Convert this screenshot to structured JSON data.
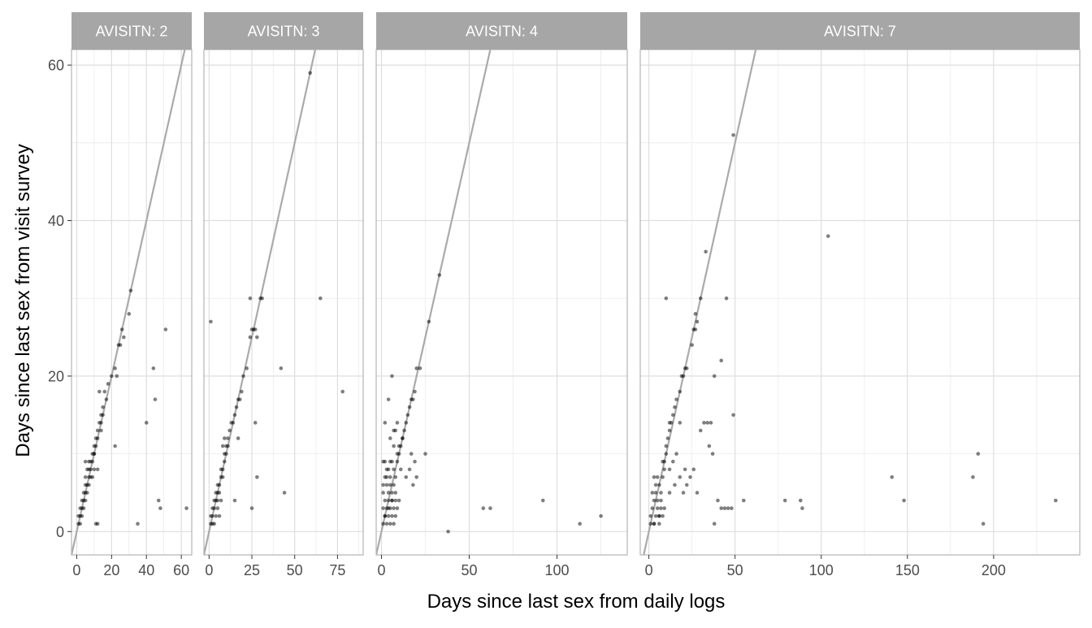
{
  "chart_data": {
    "type": "scatter",
    "layout": "faceted",
    "xlabel": "Days since last sex from daily logs",
    "ylabel": "Days since last sex from visit survey",
    "ylim": [
      -3,
      62
    ],
    "yticks": [
      0,
      20,
      40,
      60
    ],
    "grid": true,
    "reference_line": {
      "slope": 1,
      "intercept": 0
    },
    "point_color": "#000000",
    "point_opacity": 0.5,
    "line_color": "#aaaaaa",
    "panels": [
      {
        "label": "AVISITN: 2",
        "xlim": [
          -3,
          66
        ],
        "xticks": [
          0,
          20,
          40,
          60
        ],
        "x": [
          1,
          1,
          2,
          2,
          2,
          3,
          3,
          3,
          4,
          4,
          4,
          5,
          5,
          5,
          5,
          6,
          6,
          6,
          7,
          7,
          7,
          7,
          8,
          8,
          9,
          9,
          9,
          10,
          10,
          10,
          11,
          11,
          12,
          12,
          13,
          14,
          14,
          15,
          15,
          16,
          17,
          18,
          20,
          22,
          23,
          25,
          26,
          27,
          30,
          31,
          22,
          24,
          13,
          5,
          8,
          10,
          12,
          14,
          35,
          40,
          44,
          45,
          47,
          48,
          51,
          63,
          11,
          12
        ],
        "y": [
          1,
          2,
          1,
          2,
          3,
          3,
          4,
          2,
          4,
          3,
          5,
          5,
          4,
          6,
          7,
          6,
          5,
          8,
          7,
          6,
          8,
          9,
          8,
          7,
          10,
          9,
          7,
          10,
          11,
          8,
          12,
          11,
          13,
          12,
          14,
          15,
          13,
          15,
          16,
          18,
          17,
          19,
          20,
          21,
          20,
          24,
          26,
          25,
          28,
          31,
          11,
          24,
          18,
          9,
          9,
          10,
          8,
          14,
          1,
          14,
          21,
          17,
          4,
          3,
          26,
          3,
          1,
          1
        ]
      },
      {
        "label": "AVISITN: 3",
        "xlim": [
          -3,
          90
        ],
        "xticks": [
          0,
          25,
          50,
          75
        ],
        "x": [
          1,
          1,
          2,
          2,
          3,
          3,
          4,
          4,
          5,
          5,
          6,
          6,
          7,
          7,
          8,
          8,
          9,
          9,
          10,
          10,
          11,
          11,
          12,
          13,
          14,
          15,
          16,
          17,
          18,
          19,
          20,
          22,
          24,
          25,
          26,
          27,
          28,
          30,
          31,
          59,
          65,
          42,
          44,
          78,
          27,
          28,
          24,
          25,
          8,
          9,
          4,
          5,
          7,
          6,
          3,
          2,
          5,
          15,
          1,
          17
        ],
        "y": [
          1,
          2,
          2,
          3,
          3,
          4,
          4,
          5,
          4,
          6,
          6,
          5,
          7,
          8,
          8,
          7,
          9,
          10,
          10,
          11,
          11,
          12,
          13,
          14,
          14,
          15,
          16,
          17,
          17,
          18,
          20,
          21,
          25,
          26,
          26,
          26,
          25,
          30,
          30,
          59,
          30,
          21,
          5,
          18,
          14,
          7,
          30,
          3,
          11,
          12,
          2,
          3,
          4,
          2,
          1,
          1,
          5,
          4,
          27,
          12
        ]
      },
      {
        "label": "AVISITN: 4",
        "xlim": [
          -3,
          140
        ],
        "xticks": [
          0,
          50,
          100
        ],
        "x": [
          1,
          1,
          1,
          1,
          2,
          2,
          2,
          2,
          3,
          3,
          3,
          3,
          4,
          4,
          4,
          4,
          5,
          5,
          5,
          5,
          6,
          6,
          6,
          6,
          7,
          7,
          7,
          7,
          8,
          8,
          8,
          9,
          9,
          10,
          10,
          11,
          12,
          13,
          14,
          15,
          16,
          17,
          18,
          19,
          20,
          22,
          27,
          33,
          2,
          4,
          6,
          8,
          10,
          12,
          14,
          16,
          18,
          20,
          25,
          38,
          58,
          62,
          92,
          113,
          125,
          1,
          3,
          5,
          7,
          9,
          11,
          2,
          4,
          6,
          8,
          17,
          19,
          5,
          7,
          9
        ],
        "y": [
          1,
          3,
          5,
          9,
          2,
          4,
          7,
          9,
          1,
          3,
          6,
          8,
          2,
          4,
          5,
          8,
          1,
          3,
          6,
          7,
          2,
          4,
          5,
          9,
          1,
          3,
          6,
          8,
          2,
          4,
          7,
          3,
          9,
          4,
          10,
          11,
          12,
          13,
          14,
          15,
          16,
          17,
          17,
          18,
          21,
          21,
          27,
          33,
          14,
          17,
          20,
          13,
          11,
          12,
          7,
          8,
          6,
          7,
          10,
          0,
          3,
          3,
          4,
          1,
          2,
          6,
          7,
          9,
          11,
          10,
          8,
          2,
          3,
          4,
          5,
          10,
          9,
          12,
          13,
          14
        ]
      },
      {
        "label": "AVISITN: 7",
        "xlim": [
          -5,
          250
        ],
        "xticks": [
          0,
          50,
          100,
          150,
          200
        ],
        "x": [
          1,
          1,
          2,
          2,
          3,
          3,
          3,
          4,
          4,
          4,
          5,
          5,
          5,
          6,
          6,
          6,
          7,
          7,
          7,
          8,
          8,
          9,
          9,
          10,
          10,
          11,
          12,
          12,
          13,
          14,
          15,
          16,
          18,
          19,
          20,
          21,
          22,
          25,
          26,
          27,
          27,
          28,
          30,
          33,
          35,
          37,
          38,
          42,
          45,
          49,
          49,
          55,
          79,
          88,
          89,
          104,
          141,
          148,
          188,
          191,
          194,
          236,
          10,
          12,
          14,
          16,
          18,
          20,
          22,
          24,
          26,
          28,
          30,
          32,
          34,
          36,
          38,
          40,
          42,
          44,
          46,
          48,
          3,
          6,
          9,
          12,
          15,
          18,
          21,
          8
        ],
        "y": [
          1,
          2,
          3,
          5,
          1,
          4,
          7,
          2,
          5,
          6,
          3,
          4,
          7,
          1,
          2,
          6,
          3,
          4,
          5,
          2,
          7,
          8,
          9,
          10,
          11,
          12,
          13,
          14,
          14,
          15,
          16,
          17,
          18,
          20,
          20,
          21,
          21,
          24,
          26,
          26,
          28,
          27,
          30,
          36,
          11,
          10,
          20,
          22,
          30,
          51,
          15,
          4,
          4,
          4,
          3,
          38,
          7,
          4,
          7,
          10,
          1,
          4,
          30,
          8,
          9,
          10,
          14,
          5,
          6,
          7,
          8,
          5,
          13,
          14,
          14,
          14,
          1,
          4,
          3,
          3,
          3,
          3,
          1,
          2,
          3,
          5,
          6,
          7,
          8,
          9
        ]
      }
    ]
  }
}
